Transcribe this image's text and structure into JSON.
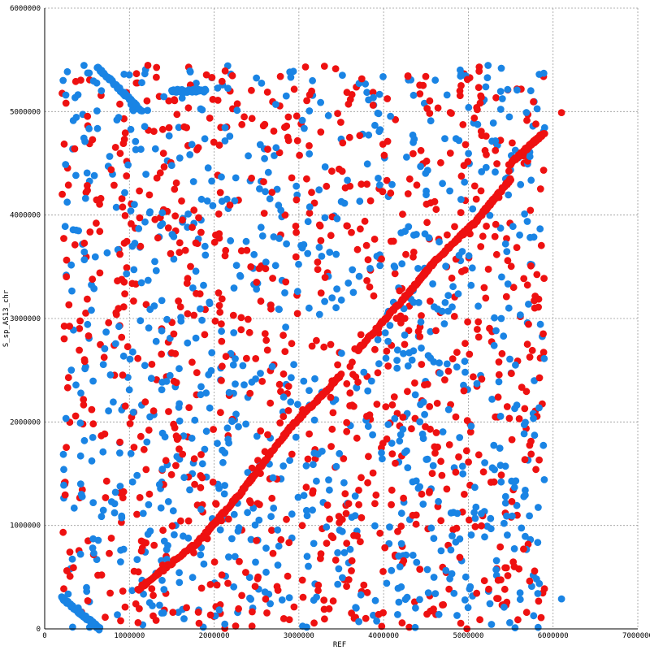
{
  "chart_data": {
    "type": "scatter",
    "title": "",
    "xlabel": "REF",
    "ylabel": "S_sp_AS13_chr",
    "xlim": [
      0,
      7000000
    ],
    "ylim": [
      0,
      6000000
    ],
    "x_ticks": [
      "0",
      "1000000",
      "2000000",
      "3000000",
      "4000000",
      "5000000",
      "6000000",
      "7000000"
    ],
    "y_ticks": [
      "0",
      "1000000",
      "2000000",
      "3000000",
      "4000000",
      "5000000",
      "6000000"
    ],
    "grid": true,
    "legend": "none",
    "colors": {
      "forward": "#ee1111",
      "reverse": "#1a84e4"
    },
    "series": [
      {
        "color": "forward",
        "segments": [
          {
            "x": [
              1100000,
              1800000
            ],
            "y": [
              380000,
              830000
            ]
          },
          {
            "x": [
              1800000,
              2300000
            ],
            "y": [
              830000,
              1300000
            ]
          },
          {
            "x": [
              2300000,
              2900000
            ],
            "y": [
              1300000,
              1950000
            ]
          },
          {
            "x": [
              2900000,
              3500000
            ],
            "y": [
              1950000,
              2450000
            ]
          },
          {
            "x": [
              3700000,
              4300000
            ],
            "y": [
              2700000,
              3250000
            ]
          },
          {
            "x": [
              4300000,
              4600000
            ],
            "y": [
              3250000,
              3550000
            ]
          },
          {
            "x": [
              4600000,
              5100000
            ],
            "y": [
              3550000,
              3950000
            ]
          },
          {
            "x": [
              5100000,
              5500000
            ],
            "y": [
              3950000,
              4350000
            ]
          },
          {
            "x": [
              5500000,
              5900000
            ],
            "y": [
              4500000,
              4800000
            ]
          }
        ],
        "extra_points": [
          {
            "x": 6100000,
            "y": 4990000
          }
        ]
      },
      {
        "color": "reverse",
        "segments": [
          {
            "x": [
              620000,
              1150000
            ],
            "y": [
              5430000,
              5000000
            ]
          },
          {
            "x": [
              200000,
              650000
            ],
            "y": [
              300000,
              0
            ]
          },
          {
            "x": [
              1500000,
              1900000
            ],
            "y": [
              5200000,
              5200000
            ]
          }
        ],
        "extra_points": [
          {
            "x": 6100000,
            "y": 290000
          }
        ]
      }
    ],
    "scatter_range": {
      "x": [
        200000,
        5900000
      ],
      "y": [
        0,
        5450000
      ]
    }
  }
}
